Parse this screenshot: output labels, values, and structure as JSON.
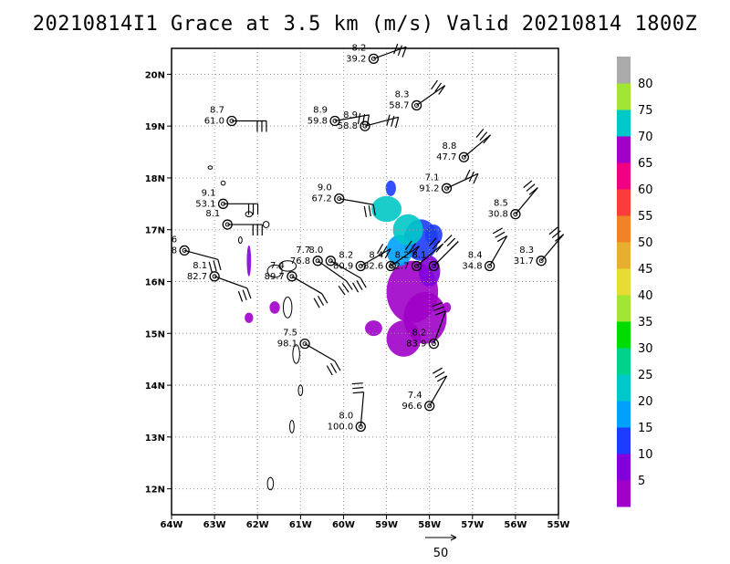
{
  "title": "20210814I1 Grace at 3.5 km (m/s) Valid 20210814 1800Z",
  "map": {
    "lon_range": [
      -64,
      -55
    ],
    "lat_range": [
      11.5,
      20.5
    ],
    "x_ticks": [
      "64W",
      "63W",
      "62W",
      "61W",
      "60W",
      "59W",
      "58W",
      "57W",
      "56W",
      "55W"
    ],
    "y_ticks": [
      "12N",
      "13N",
      "14N",
      "15N",
      "16N",
      "17N",
      "18N",
      "19N",
      "20N"
    ],
    "grid": "dotted"
  },
  "stations": [
    {
      "lon": -59.3,
      "lat": 20.3,
      "top": "8.2",
      "bottom": "39.2",
      "barb_dir": 110,
      "flags": 1
    },
    {
      "lon": -58.3,
      "lat": 19.4,
      "top": "8.3",
      "bottom": "58.7",
      "barb_dir": 125,
      "flags": 1
    },
    {
      "lon": -62.6,
      "lat": 19.1,
      "top": "8.7",
      "bottom": "61.0",
      "barb_dir": 90,
      "flags": 1
    },
    {
      "lon": -60.2,
      "lat": 19.1,
      "top": "8.9",
      "bottom": "59.8",
      "barb_dir": 100,
      "flags": 1
    },
    {
      "lon": -59.5,
      "lat": 19.0,
      "top": "8.9",
      "bottom": "58.8",
      "barb_dir": 105,
      "flags": 1
    },
    {
      "lon": -57.2,
      "lat": 18.4,
      "top": "8.8",
      "bottom": "47.7",
      "barb_dir": 130,
      "flags": 1
    },
    {
      "lon": -57.6,
      "lat": 17.8,
      "top": "7.1",
      "bottom": "91.2",
      "barb_dir": 115,
      "flags": 1
    },
    {
      "lon": -62.8,
      "lat": 17.5,
      "top": "9.1",
      "bottom": "53.1",
      "barb_dir": 90,
      "flags": 1
    },
    {
      "lon": -60.1,
      "lat": 17.6,
      "top": "9.0",
      "bottom": "67.2",
      "barb_dir": 80,
      "flags": 1
    },
    {
      "lon": -62.7,
      "lat": 17.1,
      "top": "8.1",
      "bottom": "",
      "barb_dir": 90,
      "flags": 1
    },
    {
      "lon": -56.0,
      "lat": 17.3,
      "top": "8.5",
      "bottom": "30.8",
      "barb_dir": 140,
      "flags": 1
    },
    {
      "lon": -63.7,
      "lat": 16.6,
      "top": "6",
      "bottom": "8",
      "barb_dir": 75,
      "flags": 1
    },
    {
      "lon": -63.0,
      "lat": 16.1,
      "top": "8.1",
      "bottom": "82.7",
      "barb_dir": 70,
      "flags": 1
    },
    {
      "lon": -61.2,
      "lat": 16.1,
      "top": "7.4",
      "bottom": "89.7",
      "barb_dir": 60,
      "flags": 1
    },
    {
      "lon": -60.6,
      "lat": 16.4,
      "top": "7.7",
      "bottom": "76.8",
      "barb_dir": 55,
      "flags": 1
    },
    {
      "lon": -60.3,
      "lat": 16.4,
      "top": "8.0",
      "bottom": "",
      "barb_dir": 60,
      "flags": 1
    },
    {
      "lon": -59.6,
      "lat": 16.3,
      "top": "8.2",
      "bottom": "80.9",
      "barb_dir": 120,
      "flags": 1
    },
    {
      "lon": -58.9,
      "lat": 16.3,
      "top": "8.4",
      "bottom": "82.6",
      "barb_dir": 125,
      "flags": 1
    },
    {
      "lon": -58.3,
      "lat": 16.3,
      "top": "8.2",
      "bottom": "82.7",
      "barb_dir": 130,
      "flags": 1
    },
    {
      "lon": -57.9,
      "lat": 16.3,
      "top": "8.1",
      "bottom": "",
      "barb_dir": 135,
      "flags": 1
    },
    {
      "lon": -56.6,
      "lat": 16.3,
      "top": "8.4",
      "bottom": "34.8",
      "barb_dir": 150,
      "flags": 1
    },
    {
      "lon": -55.4,
      "lat": 16.4,
      "top": "8.3",
      "bottom": "31.7",
      "barb_dir": 140,
      "flags": 1
    },
    {
      "lon": -60.9,
      "lat": 14.8,
      "top": "7.5",
      "bottom": "98.1",
      "barb_dir": 60,
      "flags": 1
    },
    {
      "lon": -57.9,
      "lat": 14.8,
      "top": "8.2",
      "bottom": "83.9",
      "barb_dir": 160,
      "flags": 0
    },
    {
      "lon": -58.0,
      "lat": 13.6,
      "top": "7.4",
      "bottom": "96.6",
      "barb_dir": 150,
      "flags": 0
    },
    {
      "lon": -59.6,
      "lat": 13.2,
      "top": "8.0",
      "bottom": "100.0",
      "barb_dir": 175,
      "flags": 0
    }
  ],
  "colorbar": {
    "colors": [
      "#a000c8",
      "#8200dc",
      "#1e3cff",
      "#00a0ff",
      "#00c8c8",
      "#00d28c",
      "#00dc00",
      "#a0e632",
      "#e6dc32",
      "#e6af2d",
      "#f08228",
      "#fa3c3c",
      "#f00082",
      "#a000c8",
      "#00c8c8",
      "#a0e632",
      "#aaaaaa"
    ],
    "labels": [
      "5",
      "10",
      "15",
      "20",
      "25",
      "30",
      "35",
      "40",
      "45",
      "50",
      "55",
      "60",
      "65",
      "70",
      "75",
      "80"
    ]
  },
  "reference_vector": {
    "label": "50"
  }
}
